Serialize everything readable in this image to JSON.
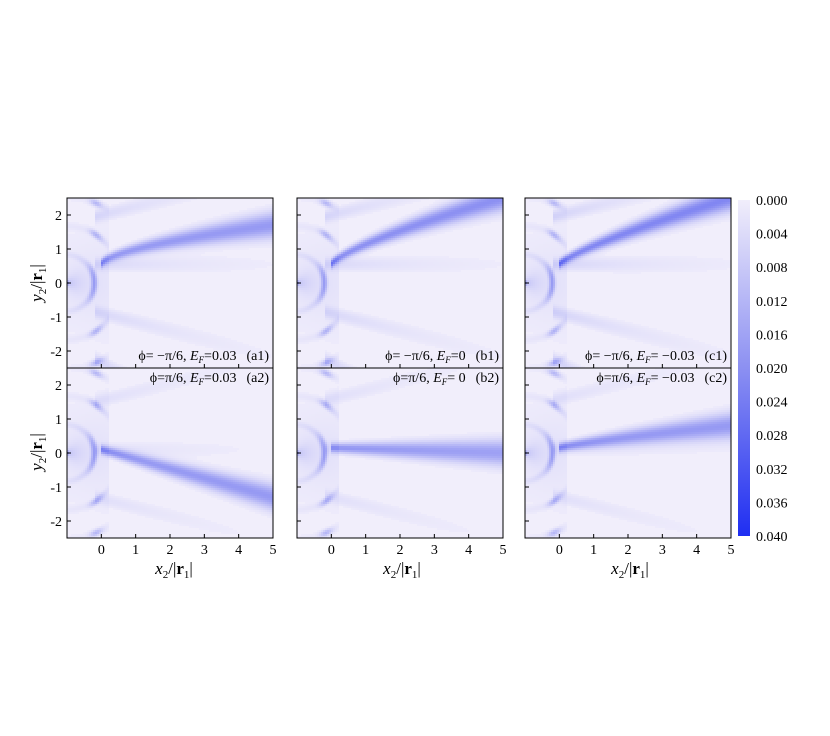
{
  "chart_data": {
    "type": "heatmap",
    "xlabel": "x2/|r1|",
    "ylabel": "y2/|r1|",
    "xlim": [
      -1,
      5
    ],
    "ylim": [
      -2.5,
      2.5
    ],
    "x_ticks": [
      "0",
      "1",
      "2",
      "3",
      "4",
      "5"
    ],
    "y_ticks": [
      "2",
      "1",
      "0",
      "-1",
      "-2"
    ],
    "colorbar": {
      "ticks": [
        "0.000",
        "0.004",
        "0.008",
        "0.012",
        "0.016",
        "0.020",
        "0.024",
        "0.028",
        "0.032",
        "0.036",
        "0.040"
      ],
      "range": [
        0.0,
        0.04
      ],
      "color_low": "#f1eefb",
      "color_high": "#1f2ef2"
    },
    "panels": [
      {
        "id": "a1",
        "label": "(a1)",
        "phi": "ϕ= −π/6,",
        "ef_value": "=0.03",
        "ridge_start": 0.55,
        "ridge_end": 1.7,
        "ridge_power": 0.6,
        "ridge_strength": 0.45,
        "wave_strength": 0.35
      },
      {
        "id": "b1",
        "label": "(b1)",
        "phi": "ϕ= −π/6,",
        "ef_value": "=0",
        "ridge_start": 0.55,
        "ridge_end": 2.5,
        "ridge_power": 0.75,
        "ridge_strength": 0.5,
        "wave_strength": 0.35
      },
      {
        "id": "c1",
        "label": "(c1)",
        "phi": "ϕ= −π/6,",
        "ef_value": "= −0.03",
        "ridge_start": 0.55,
        "ridge_end": 2.5,
        "ridge_power": 0.8,
        "ridge_strength": 0.55,
        "wave_strength": 0.4
      },
      {
        "id": "a2",
        "label": "(a2)",
        "phi": "ϕ=π/6,",
        "ef_value": "=0.03",
        "ridge_start": 0.1,
        "ridge_end": -1.3,
        "ridge_power": 1.0,
        "ridge_strength": 0.45,
        "wave_strength": 0.25
      },
      {
        "id": "b2",
        "label": "(b2)",
        "phi": "ϕ=π/6,",
        "ef_value": "= 0",
        "ridge_start": 0.15,
        "ridge_end": 0.0,
        "ridge_power": 1.0,
        "ridge_strength": 0.4,
        "wave_strength": 0.25
      },
      {
        "id": "c2",
        "label": "(c2)",
        "phi": "ϕ=π/6,",
        "ef_value": "= −0.03",
        "ridge_start": 0.15,
        "ridge_end": 0.8,
        "ridge_power": 0.8,
        "ridge_strength": 0.45,
        "wave_strength": 0.25
      }
    ]
  }
}
